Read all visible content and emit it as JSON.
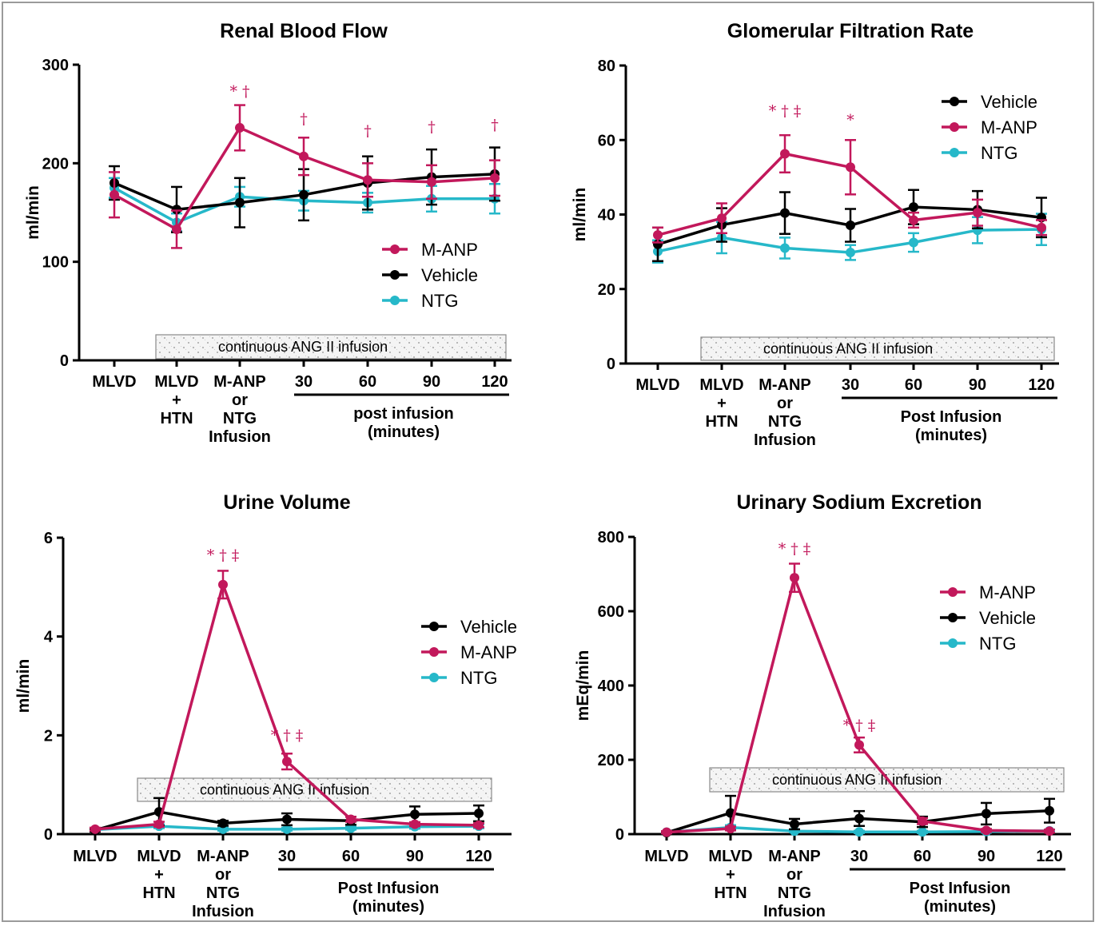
{
  "colors": {
    "M-ANP": "#c2185b",
    "Vehicle": "#000000",
    "NTG": "#26b8c9"
  },
  "chart_data": [
    {
      "type": "line",
      "title": "Renal Blood Flow",
      "ylabel": "ml/min",
      "ylim": [
        0,
        300
      ],
      "yticks": [
        0,
        100,
        200,
        300
      ],
      "categories": [
        "MLVD",
        "MLVD + HTN",
        "M-ANP or NTG Infusion",
        "30",
        "60",
        "90",
        "120"
      ],
      "category_lines": [
        [
          "MLVD"
        ],
        [
          "MLVD",
          "+",
          "HTN"
        ],
        [
          "M-ANP",
          "or",
          "NTG",
          "Infusion"
        ],
        [
          "30"
        ],
        [
          "60"
        ],
        [
          "90"
        ],
        [
          "120"
        ]
      ],
      "post_label": [
        "post infusion",
        "(minutes)"
      ],
      "band_label": "continuous ANG II infusion",
      "legend": [
        "M-ANP",
        "Vehicle",
        "NTG"
      ],
      "series": [
        {
          "name": "M-ANP",
          "values": [
            168,
            133,
            236,
            207,
            183,
            181,
            185
          ],
          "err": [
            23,
            19,
            23,
            19,
            17,
            17,
            18
          ]
        },
        {
          "name": "Vehicle",
          "values": [
            180,
            153,
            160,
            168,
            180,
            186,
            189
          ],
          "err": [
            17,
            23,
            25,
            26,
            27,
            28,
            27
          ]
        },
        {
          "name": "NTG",
          "values": [
            175,
            140,
            166,
            162,
            160,
            164,
            164
          ],
          "err": [
            10,
            9,
            10,
            10,
            10,
            13,
            15
          ]
        }
      ],
      "significance": [
        {
          "index": 2,
          "text": "* †",
          "y": 268
        },
        {
          "index": 3,
          "text": "†",
          "y": 240
        },
        {
          "index": 4,
          "text": "†",
          "y": 228
        },
        {
          "index": 5,
          "text": "†",
          "y": 232
        },
        {
          "index": 6,
          "text": "†",
          "y": 234
        }
      ]
    },
    {
      "type": "line",
      "title": "Glomerular Filtration Rate",
      "ylabel": "ml/min",
      "ylim": [
        0,
        80
      ],
      "yticks": [
        0,
        20,
        40,
        60,
        80
      ],
      "categories": [
        "MLVD",
        "MLVD + HTN",
        "M-ANP or NTG Infusion",
        "30",
        "60",
        "90",
        "120"
      ],
      "category_lines": [
        [
          "MLVD"
        ],
        [
          "MLVD",
          "+",
          "HTN"
        ],
        [
          "M-ANP",
          "or",
          "NTG",
          "Infusion"
        ],
        [
          "30"
        ],
        [
          "60"
        ],
        [
          "90"
        ],
        [
          "120"
        ]
      ],
      "post_label": [
        "Post Infusion",
        "(minutes)"
      ],
      "band_label": "continuous ANG II infusion",
      "legend": [
        "Vehicle",
        "M-ANP",
        "NTG"
      ],
      "series": [
        {
          "name": "M-ANP",
          "values": [
            34.5,
            39,
            56.3,
            52.7,
            38.5,
            40.5,
            36.5
          ],
          "err": [
            2,
            4,
            5,
            7.3,
            2,
            3.5,
            2
          ]
        },
        {
          "name": "Vehicle",
          "values": [
            32,
            37.2,
            40.4,
            37.1,
            42,
            41.3,
            39.2
          ],
          "err": [
            4.5,
            4.5,
            5.6,
            4.4,
            4.6,
            5,
            5.3
          ]
        },
        {
          "name": "NTG",
          "values": [
            30.1,
            33.8,
            31,
            29.8,
            32.5,
            35.8,
            36
          ],
          "err": [
            3,
            4.2,
            2.8,
            2,
            2.5,
            3.5,
            4.2
          ]
        }
      ],
      "significance": [
        {
          "index": 2,
          "text": "* † ‡",
          "y": 66.5
        },
        {
          "index": 3,
          "text": "*",
          "y": 64
        }
      ]
    },
    {
      "type": "line",
      "title": "Urine Volume",
      "ylabel": "ml/min",
      "ylim": [
        0,
        6
      ],
      "yticks": [
        0,
        2,
        4,
        6
      ],
      "categories": [
        "MLVD",
        "MLVD + HTN",
        "M-ANP or NTG Infusion",
        "30",
        "60",
        "90",
        "120"
      ],
      "category_lines": [
        [
          "MLVD"
        ],
        [
          "MLVD",
          "+",
          "HTN"
        ],
        [
          "M-ANP",
          "or",
          "NTG",
          "Infusion"
        ],
        [
          "30"
        ],
        [
          "60"
        ],
        [
          "90"
        ],
        [
          "120"
        ]
      ],
      "post_label": [
        "Post Infusion",
        "(minutes)"
      ],
      "band_label": "continuous ANG II infusion",
      "legend": [
        "Vehicle",
        "M-ANP",
        "NTG"
      ],
      "series": [
        {
          "name": "M-ANP",
          "values": [
            0.1,
            0.2,
            5.05,
            1.47,
            0.3,
            0.2,
            0.18
          ],
          "err": [
            0.03,
            0.05,
            0.28,
            0.16,
            0.05,
            0.04,
            0.04
          ]
        },
        {
          "name": "Vehicle",
          "values": [
            0.08,
            0.45,
            0.22,
            0.3,
            0.27,
            0.4,
            0.42
          ],
          "err": [
            0.03,
            0.28,
            0.05,
            0.12,
            0.08,
            0.16,
            0.16
          ]
        },
        {
          "name": "NTG",
          "values": [
            0.09,
            0.16,
            0.1,
            0.1,
            0.12,
            0.15,
            0.16
          ],
          "err": [
            0.02,
            0.04,
            0.03,
            0.03,
            0.03,
            0.04,
            0.04
          ]
        }
      ],
      "significance": [
        {
          "index": 2,
          "text": "* † ‡",
          "y": 5.55
        },
        {
          "index": 3,
          "text": "* † ‡",
          "y": 1.9
        }
      ]
    },
    {
      "type": "line",
      "title": "Urinary Sodium Excretion",
      "ylabel": "mEq/min",
      "ylim": [
        0,
        800
      ],
      "yticks": [
        0,
        200,
        400,
        600,
        800
      ],
      "categories": [
        "MLVD",
        "MLVD + HTN",
        "M-ANP or NTG Infusion",
        "30",
        "60",
        "90",
        "120"
      ],
      "category_lines": [
        [
          "MLVD"
        ],
        [
          "MLVD",
          "+",
          "HTN"
        ],
        [
          "M-ANP",
          "or",
          "NTG",
          "Infusion"
        ],
        [
          "30"
        ],
        [
          "60"
        ],
        [
          "90"
        ],
        [
          "120"
        ]
      ],
      "post_label": [
        "Post Infusion",
        "(minutes)"
      ],
      "band_label": "continuous ANG II infusion",
      "legend": [
        "M-ANP",
        "Vehicle",
        "NTG"
      ],
      "series": [
        {
          "name": "M-ANP",
          "values": [
            5,
            15,
            690,
            240,
            35,
            10,
            8
          ],
          "err": [
            3,
            5,
            38,
            20,
            8,
            4,
            4
          ]
        },
        {
          "name": "Vehicle",
          "values": [
            4,
            57,
            27,
            42,
            33,
            55,
            63
          ],
          "err": [
            3,
            46,
            14,
            20,
            14,
            29,
            32
          ]
        },
        {
          "name": "NTG",
          "values": [
            5,
            18,
            8,
            6,
            6,
            7,
            9
          ],
          "err": [
            2,
            6,
            3,
            3,
            3,
            3,
            3
          ]
        }
      ],
      "significance": [
        {
          "index": 2,
          "text": "* † ‡",
          "y": 755
        },
        {
          "index": 3,
          "text": "* † ‡",
          "y": 280
        }
      ]
    }
  ]
}
